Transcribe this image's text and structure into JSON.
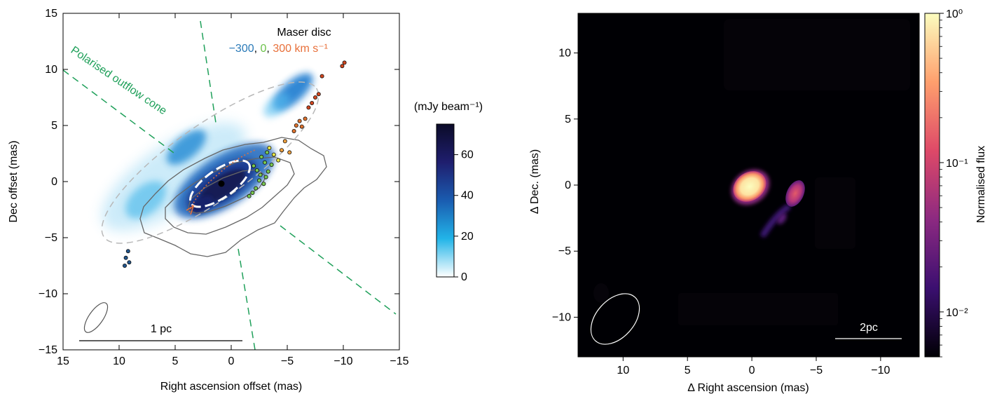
{
  "chart_data": [
    {
      "type": "image",
      "xlabel": "Right ascension offset (mas)",
      "ylabel": "Dec offset (mas)",
      "xlim": [
        15,
        -15
      ],
      "ylim": [
        -15,
        15
      ],
      "xticks": [
        15,
        10,
        5,
        0,
        -5,
        -10,
        -15
      ],
      "xtick_labels": [
        "15",
        "10",
        "5",
        "0",
        "−5",
        "−10",
        "−15"
      ],
      "yticks": [
        15,
        10,
        5,
        0,
        -5,
        -10,
        -15
      ],
      "ytick_labels": [
        "15",
        "10",
        "5",
        "0",
        "−5",
        "−10",
        "−15"
      ],
      "colorbar": {
        "label": "(mJy beam⁻¹)",
        "range": [
          0,
          75
        ],
        "ticks": [
          0,
          20,
          40,
          60
        ],
        "tick_labels": [
          "0",
          "20",
          "40",
          "60"
        ],
        "colors": [
          "#ffffff",
          "#22b4e8",
          "#1a5cb0",
          "#1f1e6e",
          "#0b0b28"
        ]
      },
      "legend": {
        "title": "Maser disc",
        "velocity_labels": [
          "−300",
          "0",
          "300 km s⁻¹"
        ],
        "velocity_colors": [
          "#2a7ab8",
          "#6cc24a",
          "#e8703a"
        ],
        "separator": ", "
      },
      "annotations": {
        "cone_label": "Polarised outflow cone",
        "cone_color": "#1fa05a",
        "scale_label": "1 pc"
      },
      "maser_spots": [
        {
          "x": 9.2,
          "y": -6.2,
          "v": -300
        },
        {
          "x": 9.4,
          "y": -6.8,
          "v": -300
        },
        {
          "x": 9.1,
          "y": -7.2,
          "v": -300
        },
        {
          "x": 9.5,
          "y": -7.5,
          "v": -300
        },
        {
          "x": -2.0,
          "y": 1.4,
          "v": 0
        },
        {
          "x": -2.3,
          "y": 1.0,
          "v": 0
        },
        {
          "x": -2.6,
          "y": 0.6,
          "v": 0
        },
        {
          "x": -2.5,
          "y": 0.1,
          "v": 0
        },
        {
          "x": -2.9,
          "y": -0.2,
          "v": 0
        },
        {
          "x": -3.1,
          "y": 0.4,
          "v": 0
        },
        {
          "x": -3.3,
          "y": 0.9,
          "v": 0
        },
        {
          "x": -3.0,
          "y": 1.7,
          "v": 0
        },
        {
          "x": -3.6,
          "y": 1.5,
          "v": 0
        },
        {
          "x": -2.7,
          "y": 2.2,
          "v": 0
        },
        {
          "x": -2.2,
          "y": -0.6,
          "v": 0
        },
        {
          "x": -1.9,
          "y": -1.0,
          "v": 0
        },
        {
          "x": -1.6,
          "y": -1.3,
          "v": 0
        },
        {
          "x": -3.2,
          "y": 2.6,
          "v": 0
        },
        {
          "x": -3.4,
          "y": 3.0,
          "v": 100
        },
        {
          "x": -3.8,
          "y": 2.4,
          "v": 100
        },
        {
          "x": -4.2,
          "y": 1.9,
          "v": 100
        },
        {
          "x": -4.5,
          "y": 2.8,
          "v": 200
        },
        {
          "x": -4.8,
          "y": 3.6,
          "v": 200
        },
        {
          "x": -5.2,
          "y": 2.6,
          "v": 200
        },
        {
          "x": -5.6,
          "y": 4.5,
          "v": 250
        },
        {
          "x": -5.8,
          "y": 5.0,
          "v": 250
        },
        {
          "x": -6.1,
          "y": 5.4,
          "v": 250
        },
        {
          "x": -6.3,
          "y": 4.9,
          "v": 250
        },
        {
          "x": -6.6,
          "y": 5.6,
          "v": 250
        },
        {
          "x": -6.9,
          "y": 6.6,
          "v": 300
        },
        {
          "x": -7.2,
          "y": 7.0,
          "v": 300
        },
        {
          "x": -7.5,
          "y": 7.5,
          "v": 300
        },
        {
          "x": -7.8,
          "y": 7.8,
          "v": 300
        },
        {
          "x": -8.1,
          "y": 9.4,
          "v": 300
        },
        {
          "x": -9.9,
          "y": 10.3,
          "v": 300
        },
        {
          "x": -10.1,
          "y": 10.6,
          "v": 300
        }
      ]
    },
    {
      "type": "image",
      "xlabel": "Δ Right ascension (mas)",
      "ylabel": "Δ Dec. (mas)",
      "xlim": [
        13.5,
        -13
      ],
      "ylim": [
        -13,
        13
      ],
      "xticks": [
        10,
        5,
        0,
        -5,
        -10
      ],
      "xtick_labels": [
        "10",
        "5",
        "0",
        "−5",
        "−10"
      ],
      "yticks": [
        10,
        5,
        0,
        -5,
        -10
      ],
      "ytick_labels": [
        "10",
        "5",
        "0",
        "−5",
        "−10"
      ],
      "colorbar": {
        "label": "Normalised flux",
        "scale": "log",
        "range": [
          0.005,
          1
        ],
        "ticks": [
          0.01,
          0.1,
          1
        ],
        "tick_labels": [
          "10⁻²",
          "10⁻¹",
          "10⁰"
        ],
        "colors": [
          "#000004",
          "#3b0f70",
          "#8c2981",
          "#de4968",
          "#fe9f6d",
          "#fcfdbf"
        ]
      },
      "annotations": {
        "scale_label": "2pc"
      }
    }
  ]
}
